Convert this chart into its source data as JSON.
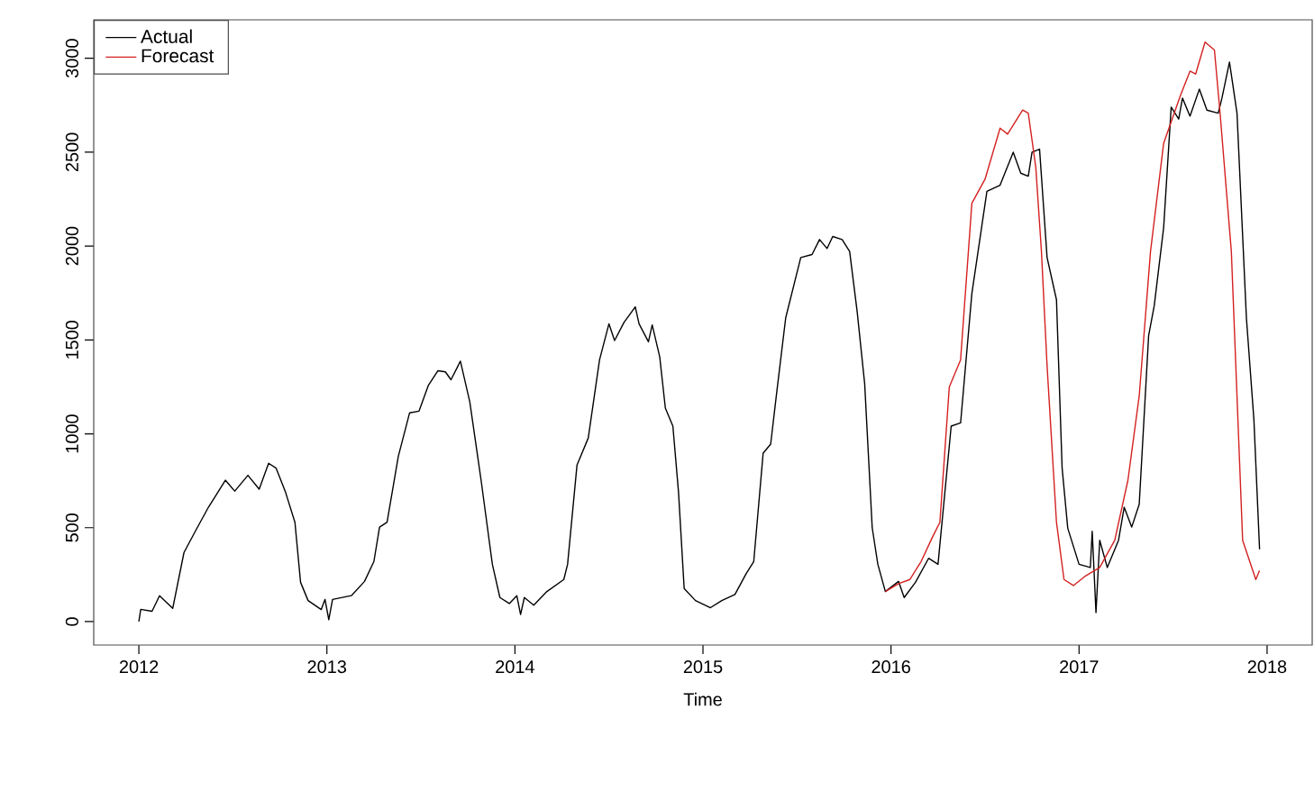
{
  "chart_data": {
    "type": "line",
    "xlabel": "Time",
    "xlim": [
      2011.76,
      2018.24
    ],
    "ylim": [
      -125,
      3205
    ],
    "xticks": [
      2012,
      2013,
      2014,
      2015,
      2016,
      2017,
      2018
    ],
    "yticks": [
      0,
      500,
      1000,
      1500,
      2000,
      2500,
      3000
    ],
    "legend": "top left",
    "grid": false,
    "marker": "none",
    "line_style": "solid",
    "series": [
      {
        "name": "Actual",
        "color": "#000000",
        "x": [
          2012.0,
          2012.01,
          2012.07,
          2012.11,
          2012.18,
          2012.24,
          2012.3,
          2012.37,
          2012.46,
          2012.51,
          2012.58,
          2012.64,
          2012.69,
          2012.73,
          2012.78,
          2012.83,
          2012.86,
          2012.9,
          2012.97,
          2012.99,
          2013.01,
          2013.03,
          2013.13,
          2013.2,
          2013.25,
          2013.28,
          2013.32,
          2013.38,
          2013.44,
          2013.49,
          2013.54,
          2013.59,
          2013.63,
          2013.66,
          2013.71,
          2013.76,
          2013.82,
          2013.88,
          2013.92,
          2013.97,
          2014.01,
          2014.03,
          2014.05,
          2014.1,
          2014.17,
          2014.26,
          2014.28,
          2014.33,
          2014.39,
          2014.45,
          2014.5,
          2014.53,
          2014.58,
          2014.64,
          2014.66,
          2014.71,
          2014.73,
          2014.77,
          2014.8,
          2014.84,
          2014.87,
          2014.9,
          2014.96,
          2015.04,
          2015.1,
          2015.17,
          2015.23,
          2015.27,
          2015.32,
          2015.36,
          2015.39,
          2015.44,
          2015.52,
          2015.58,
          2015.62,
          2015.66,
          2015.69,
          2015.74,
          2015.78,
          2015.82,
          2015.86,
          2015.9,
          2015.93,
          2015.97,
          2016.04,
          2016.07,
          2016.13,
          2016.2,
          2016.25,
          2016.32,
          2016.37,
          2016.43,
          2016.51,
          2016.58,
          2016.65,
          2016.69,
          2016.73,
          2016.75,
          2016.79,
          2016.83,
          2016.88,
          2016.91,
          2016.94,
          2017.0,
          2017.06,
          2017.07,
          2017.09,
          2017.11,
          2017.15,
          2017.21,
          2017.24,
          2017.28,
          2017.32,
          2017.37,
          2017.4,
          2017.45,
          2017.49,
          2017.53,
          2017.55,
          2017.59,
          2017.64,
          2017.68,
          2017.74,
          2017.76,
          2017.8,
          2017.84,
          2017.89,
          2017.93,
          2017.96
        ],
        "values": [
          0,
          65,
          55,
          138,
          70,
          368,
          481,
          609,
          753,
          695,
          779,
          705,
          843,
          817,
          689,
          529,
          209,
          112,
          64,
          118,
          10,
          118,
          138,
          214,
          320,
          503,
          529,
          881,
          1112,
          1121,
          1259,
          1336,
          1330,
          1288,
          1387,
          1170,
          753,
          305,
          128,
          96,
          138,
          38,
          128,
          87,
          160,
          224,
          305,
          833,
          978,
          1394,
          1586,
          1497,
          1593,
          1676,
          1586,
          1490,
          1580,
          1410,
          1137,
          1041,
          689,
          176,
          112,
          74,
          112,
          144,
          256,
          320,
          897,
          945,
          1202,
          1618,
          1939,
          1955,
          2035,
          1987,
          2051,
          2035,
          1971,
          1651,
          1266,
          500,
          305,
          160,
          214,
          128,
          209,
          337,
          305,
          1041,
          1058,
          1747,
          2291,
          2324,
          2500,
          2388,
          2372,
          2500,
          2516,
          1939,
          1714,
          817,
          497,
          305,
          288,
          481,
          48,
          433,
          288,
          433,
          609,
          503,
          625,
          1522,
          1683,
          2099,
          2740,
          2676,
          2788,
          2692,
          2836,
          2724,
          2708,
          2788,
          2980,
          2708,
          1618,
          1074,
          385
        ]
      },
      {
        "name": "Forecast",
        "color": "#d42020",
        "x": [
          2015.97,
          2016.04,
          2016.1,
          2016.16,
          2016.22,
          2016.26,
          2016.31,
          2016.37,
          2016.43,
          2016.5,
          2016.58,
          2016.62,
          2016.65,
          2016.7,
          2016.73,
          2016.77,
          2016.8,
          2016.83,
          2016.88,
          2016.92,
          2016.97,
          2017.03,
          2017.11,
          2017.19,
          2017.26,
          2017.32,
          2017.38,
          2017.45,
          2017.54,
          2017.59,
          2017.62,
          2017.67,
          2017.72,
          2017.75,
          2017.81,
          2017.87,
          2017.94,
          2017.96
        ],
        "values": [
          160,
          202,
          224,
          320,
          449,
          529,
          1250,
          1394,
          2228,
          2356,
          2628,
          2596,
          2644,
          2724,
          2708,
          2420,
          1971,
          1362,
          529,
          224,
          192,
          240,
          288,
          433,
          753,
          1202,
          1971,
          2548,
          2804,
          2932,
          2916,
          3086,
          3044,
          2708,
          1971,
          433,
          224,
          272
        ]
      }
    ]
  }
}
